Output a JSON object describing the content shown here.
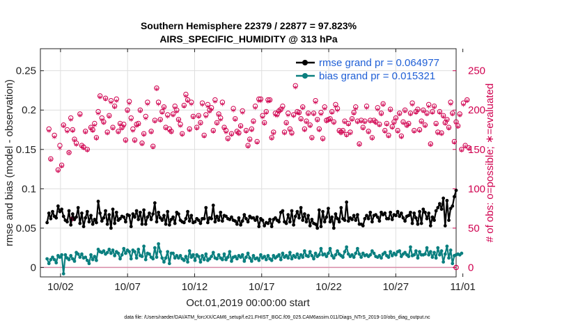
{
  "chart_data": {
    "type": "line",
    "title_line1": "Southern Hemisphere 22379 / 22877 = 97.823%",
    "title_line2": "AIRS_SPECIFIC_HUMIDITY @ 313 hPa",
    "ylabel_left": "rmse and bias (model - observation)",
    "ylabel_right": "# of obs: o=possible; ∗=evaluated",
    "xlabel": "Oct.01,2019 00:00:00 start",
    "footer": "data file: /Users/raeder/DAI/ATM_forcXX/CAM6_setup/f.e21.FHIST_BGC.f09_025.CAM6assim.011/Diags_NTrS_2019-10/obs_diag_output.nc",
    "x_range": [
      0.5,
      31.5
    ],
    "ylim_left": [
      -0.012,
      0.278
    ],
    "ylim_right": [
      -12,
      278
    ],
    "x_ticks": [
      2,
      7,
      12,
      17,
      22,
      27,
      32
    ],
    "x_tick_labels": [
      "10/02",
      "10/07",
      "10/12",
      "10/17",
      "10/22",
      "10/27",
      "11/01"
    ],
    "y_left_ticks": [
      0,
      0.05,
      0.1,
      0.15,
      0.2,
      0.25
    ],
    "y_left_tick_labels": [
      "0",
      "0.05",
      "0.1",
      "0.15",
      "0.2",
      "0.25"
    ],
    "y_right_ticks": [
      0,
      50,
      100,
      150,
      200,
      250
    ],
    "y_right_tick_labels": [
      "0",
      "50",
      "100",
      "150",
      "200",
      "250"
    ],
    "grid": true,
    "legend_position": "top-right",
    "colors": {
      "rmse": "#000000",
      "bias": "#0a7f7f",
      "obs": "#d0004f",
      "legend_text": "#1f5fd6",
      "grid": "#dedede"
    },
    "series": [
      {
        "name": "rmse grand pr = 0.064977",
        "axis": "left",
        "values": [
          0.057,
          0.069,
          0.062,
          0.071,
          0.065,
          0.063,
          0.078,
          0.071,
          0.074,
          0.065,
          0.06,
          0.058,
          0.072,
          0.054,
          0.068,
          0.061,
          0.064,
          0.076,
          0.056,
          0.069,
          0.052,
          0.063,
          0.071,
          0.058,
          0.066,
          0.055,
          0.061,
          0.057,
          0.084,
          0.069,
          0.059,
          0.063,
          0.072,
          0.055,
          0.067,
          0.05,
          0.074,
          0.056,
          0.07,
          0.06,
          0.062,
          0.065,
          0.064,
          0.058,
          0.067,
          0.066,
          0.052,
          0.068,
          0.064,
          0.072,
          0.061,
          0.07,
          0.055,
          0.073,
          0.055,
          0.064,
          0.069,
          0.061,
          0.068,
          0.082,
          0.058,
          0.07,
          0.063,
          0.06,
          0.066,
          0.055,
          0.071,
          0.054,
          0.061,
          0.064,
          0.056,
          0.07,
          0.068,
          0.06,
          0.058,
          0.057,
          0.062,
          0.071,
          0.059,
          0.066,
          0.057,
          0.058,
          0.062,
          0.06,
          0.056,
          0.062,
          0.062,
          0.076,
          0.057,
          0.063,
          0.062,
          0.079,
          0.058,
          0.065,
          0.06,
          0.07,
          0.059,
          0.066,
          0.065,
          0.062,
          0.061,
          0.064,
          0.06,
          0.059,
          0.055,
          0.063,
          0.054,
          0.059,
          0.067,
          0.062,
          0.058,
          0.065,
          0.063,
          0.063,
          0.06,
          0.064,
          0.052,
          0.062,
          0.06,
          0.053,
          0.057,
          0.056,
          0.061,
          0.052,
          0.061,
          0.063,
          0.06,
          0.058,
          0.07,
          0.072,
          0.058,
          0.056,
          0.067,
          0.058,
          0.072,
          0.054,
          0.065,
          0.071,
          0.063,
          0.076,
          0.06,
          0.068,
          0.058,
          0.066,
          0.053,
          0.061,
          0.056,
          0.055,
          0.05,
          0.073,
          0.052,
          0.071,
          0.058,
          0.064,
          0.075,
          0.058,
          0.064,
          0.05,
          0.068,
          0.062,
          0.058,
          0.076,
          0.062,
          0.06,
          0.083,
          0.059,
          0.063,
          0.061,
          0.066,
          0.06,
          0.067,
          0.055,
          0.055,
          0.053,
          0.062,
          0.066,
          0.062,
          0.07,
          0.058,
          0.066,
          0.067,
          0.064,
          0.059,
          0.07,
          0.067,
          0.069,
          0.062,
          0.062,
          0.07,
          0.061,
          0.067,
          0.066,
          0.071,
          0.065,
          0.069,
          0.063,
          0.059,
          0.065,
          0.066,
          0.07,
          0.056,
          0.069,
          0.063,
          0.055,
          0.071,
          0.056,
          0.074,
          0.07,
          0.062,
          0.069,
          0.053,
          0.064,
          0.06,
          0.072,
          0.076,
          0.081,
          0.074,
          0.088,
          0.053,
          0.085,
          0.06,
          0.075,
          0.078,
          0.09,
          0.098
        ]
      },
      {
        "name": "bias grand pr = 0.015321",
        "axis": "left",
        "values": [
          0.011,
          0.005,
          0.01,
          0.013,
          0.01,
          0.006,
          0.015,
          0.013,
          0.016,
          -0.008,
          0.016,
          0.012,
          0.01,
          0.015,
          0.011,
          0.008,
          0.019,
          0.017,
          0.013,
          0.017,
          0.012,
          0.013,
          0.009,
          0.005,
          0.016,
          0.01,
          0.014,
          0.009,
          0.023,
          0.02,
          0.019,
          0.021,
          0.017,
          0.019,
          0.023,
          0.018,
          0.022,
          0.015,
          0.02,
          0.018,
          0.011,
          0.016,
          0.024,
          0.018,
          0.022,
          0.02,
          0.011,
          0.022,
          0.02,
          0.012,
          0.023,
          0.015,
          0.014,
          0.027,
          0.01,
          0.018,
          0.017,
          0.013,
          0.011,
          0.025,
          0.013,
          0.03,
          0.02,
          0.012,
          0.007,
          0.012,
          0.02,
          0.005,
          0.018,
          0.018,
          0.012,
          0.015,
          0.012,
          0.015,
          0.011,
          0.009,
          0.014,
          0.007,
          0.021,
          0.013,
          0.016,
          0.009,
          0.016,
          0.014,
          0.007,
          0.015,
          0.01,
          0.017,
          0.009,
          0.011,
          0.014,
          0.019,
          0.012,
          0.011,
          0.016,
          0.012,
          0.01,
          0.017,
          0.01,
          0.013,
          0.02,
          0.008,
          0.013,
          0.014,
          0.011,
          0.015,
          0.013,
          0.016,
          0.008,
          0.013,
          0.018,
          0.012,
          0.008,
          0.015,
          0.011,
          0.012,
          0.009,
          0.016,
          0.012,
          0.014,
          0.01,
          0.015,
          0.011,
          0.009,
          0.015,
          0.012,
          0.014,
          0.016,
          0.01,
          0.018,
          0.013,
          0.015,
          0.012,
          0.019,
          0.011,
          0.015,
          0.013,
          0.017,
          0.012,
          0.016,
          0.013,
          0.021,
          0.015,
          0.014,
          0.02,
          0.015,
          0.011,
          0.018,
          0.014,
          0.016,
          0.024,
          0.016,
          0.017,
          0.014,
          0.018,
          0.024,
          0.015,
          0.012,
          0.016,
          0.021,
          0.017,
          0.015,
          0.013,
          0.02,
          0.026,
          0.017,
          0.014,
          0.016,
          0.013,
          0.018,
          0.024,
          0.017,
          0.013,
          0.018,
          0.015,
          0.016,
          0.014,
          0.016,
          0.021,
          0.018,
          0.014,
          0.013,
          0.015,
          0.012,
          0.017,
          0.019,
          0.015,
          0.013,
          0.02,
          0.015,
          0.018,
          0.016,
          0.02,
          0.021,
          0.014,
          0.017,
          0.019,
          0.016,
          0.014,
          0.026,
          0.015,
          0.016,
          0.021,
          0.012,
          0.02,
          0.016,
          0.016,
          0.017,
          0.025,
          0.016,
          0.02,
          0.013,
          0.019,
          0.012,
          0.025,
          0.016,
          0.021,
          0.007,
          0.017,
          0.027,
          0.012,
          0.022,
          0.005,
          0.015,
          0.016,
          0.017,
          0.016,
          0.018
        ]
      },
      {
        "name": "obs_possible",
        "axis": "right",
        "values": [
          null,
          176,
          138,
          null,
          168,
          null,
          124,
          155,
          130,
          181,
          null,
          175,
          146,
          190,
          175,
          163,
          158,
          null,
          195,
          155,
          153,
          173,
          150,
          null,
          178,
          175,
          183,
          165,
          198,
          218,
          190,
          185,
          215,
          172,
          193,
          212,
          178,
          205,
          214,
          173,
          183,
          178,
          182,
          162,
          200,
          211,
          190,
          176,
          162,
          182,
          183,
          200,
          158,
          170,
          192,
          210,
          null,
          173,
          154,
          187,
          228,
          210,
          188,
          198,
          204,
          178,
          194,
          176,
          173,
          195,
          205,
          200,
          188,
          182,
          170,
          206,
          220,
          213,
          176,
          210,
          192,
          null,
          178,
          193,
          184,
          209,
          168,
          194,
          207,
          200,
          203,
          174,
          213,
          184,
          195,
          190,
          210,
          178,
          174,
          164,
          null,
          170,
          202,
          189,
          173,
          171,
          180,
          199,
          null,
          174,
          155,
          163,
          176,
          186,
          205,
          160,
          214,
          214,
          193,
          184,
          198,
          213,
          213,
          165,
          172,
          196,
          195,
          199,
          201,
          205,
          172,
          184,
          196,
          176,
          171,
          194,
          231,
          198,
          197,
          189,
          204,
          176,
          186,
          196,
          181,
          165,
          196,
          212,
          188,
          176,
          197,
          164,
          204,
          187,
          188,
          189,
          198,
          185,
          207,
          202,
          174,
          172,
          174,
          186,
          169,
          183,
          172,
          189,
          197,
          204,
          186,
          157,
          187,
          178,
          186,
          205,
          173,
          187,
          165,
          187,
          185,
          203,
          182,
          196,
          208,
          174,
          183,
          168,
          201,
          179,
          185,
          190,
          174,
          196,
          167,
          185,
          200,
          181,
          183,
          196,
          209,
          174,
          198,
          201,
          175,
          186,
          200,
          181,
          196,
          207,
          157,
          198,
          205,
          183,
          172,
          198,
          171,
          193,
          184,
          188,
          178,
          210,
          196,
          160,
          185,
          180,
          195,
          150,
          209,
          155,
          213,
          152
        ],
        "first_marker_point": [
          2.9,
          62
        ]
      },
      {
        "name": "obs_evaluated",
        "axis": "right",
        "values": [
          null,
          172,
          135,
          null,
          164,
          null,
          121,
          150,
          127,
          178,
          null,
          171,
          144,
          186,
          172,
          160,
          154,
          null,
          192,
          152,
          150,
          170,
          147,
          null,
          175,
          172,
          179,
          162,
          194,
          215,
          186,
          182,
          212,
          169,
          190,
          208,
          175,
          202,
          210,
          170,
          180,
          175,
          178,
          159,
          197,
          207,
          186,
          172,
          159,
          178,
          180,
          197,
          155,
          167,
          188,
          206,
          null,
          170,
          151,
          184,
          225,
          206,
          185,
          195,
          201,
          175,
          190,
          172,
          170,
          192,
          201,
          196,
          185,
          178,
          167,
          203,
          216,
          210,
          173,
          206,
          189,
          null,
          175,
          190,
          181,
          205,
          165,
          190,
          203,
          196,
          199,
          171,
          209,
          181,
          192,
          186,
          206,
          175,
          170,
          161,
          null,
          167,
          198,
          186,
          170,
          168,
          177,
          195,
          null,
          171,
          152,
          160,
          173,
          183,
          201,
          157,
          210,
          210,
          189,
          181,
          195,
          209,
          210,
          162,
          169,
          192,
          191,
          196,
          198,
          201,
          169,
          181,
          192,
          173,
          168,
          191,
          227,
          195,
          194,
          186,
          201,
          173,
          183,
          193,
          178,
          162,
          193,
          208,
          185,
          173,
          193,
          161,
          200,
          184,
          185,
          186,
          195,
          182,
          203,
          198,
          171,
          169,
          171,
          183,
          166,
          180,
          169,
          186,
          194,
          200,
          183,
          154,
          184,
          175,
          183,
          201,
          170,
          184,
          162,
          184,
          182,
          199,
          179,
          193,
          205,
          171,
          180,
          165,
          198,
          176,
          182,
          187,
          171,
          193,
          164,
          182,
          197,
          178,
          180,
          193,
          205,
          171,
          195,
          198,
          172,
          183,
          197,
          178,
          193,
          203,
          154,
          195,
          202,
          180,
          169,
          195,
          168,
          190,
          181,
          185,
          175,
          206,
          193,
          157,
          182,
          177,
          192,
          147,
          205,
          152,
          210,
          149
        ]
      }
    ]
  }
}
